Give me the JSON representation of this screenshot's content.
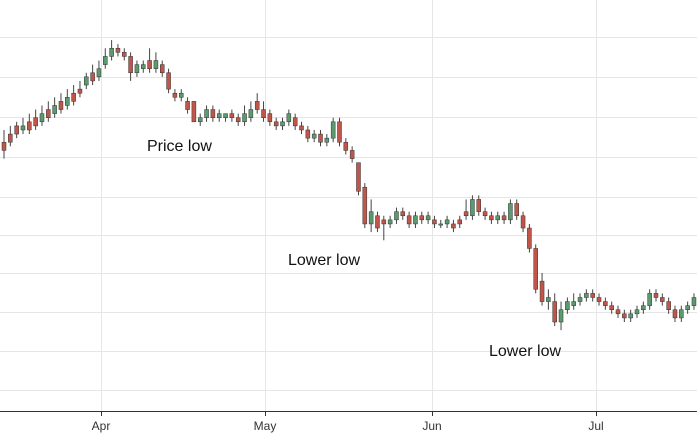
{
  "chart_data": {
    "type": "candlestick",
    "grid": true,
    "x_tick_labels": [
      "Apr",
      "May",
      "Jun",
      "Jul"
    ],
    "ylim": [
      0,
      100
    ],
    "colors": {
      "up": "#5a9a6e",
      "down": "#c0564a",
      "wick": "#444444"
    },
    "annotations": [
      {
        "text": "Price low"
      },
      {
        "text": "Lower low"
      },
      {
        "text": "Lower low"
      }
    ],
    "candles": [
      [
        74,
        72,
        77,
        70
      ],
      [
        76,
        74,
        78,
        73
      ],
      [
        78,
        76,
        79,
        75
      ],
      [
        77,
        78,
        80,
        76
      ],
      [
        79,
        77,
        81,
        76
      ],
      [
        80,
        78,
        82,
        77
      ],
      [
        79,
        81,
        83,
        78
      ],
      [
        82,
        80,
        84,
        79
      ],
      [
        81,
        83,
        85,
        80
      ],
      [
        84,
        82,
        86,
        81
      ],
      [
        83,
        85,
        87,
        82
      ],
      [
        86,
        84,
        88,
        83
      ],
      [
        87,
        86,
        89,
        85
      ],
      [
        88,
        90,
        91,
        87
      ],
      [
        91,
        89,
        93,
        88
      ],
      [
        90,
        92,
        94,
        89
      ],
      [
        93,
        95,
        97,
        92
      ],
      [
        95,
        97,
        99,
        94
      ],
      [
        97,
        96,
        98,
        95
      ],
      [
        96,
        95,
        97,
        94
      ],
      [
        95,
        91,
        96,
        89
      ],
      [
        91,
        93,
        94,
        90
      ],
      [
        92,
        93,
        94,
        91
      ],
      [
        94,
        92,
        97,
        91
      ],
      [
        92,
        94,
        96,
        91
      ],
      [
        93,
        91,
        94,
        90
      ],
      [
        91,
        87,
        92,
        86
      ],
      [
        86,
        85,
        87,
        84
      ],
      [
        85,
        86,
        87,
        84
      ],
      [
        84,
        82,
        85,
        81
      ],
      [
        84,
        79,
        84,
        79
      ],
      [
        79,
        80,
        81,
        78
      ],
      [
        80,
        82,
        83,
        79
      ],
      [
        82,
        80,
        83,
        79
      ],
      [
        80,
        81,
        82,
        79
      ],
      [
        80,
        81,
        81,
        79
      ],
      [
        81,
        80,
        82,
        79
      ],
      [
        80,
        79,
        81,
        78
      ],
      [
        79,
        81,
        83,
        78
      ],
      [
        80,
        82,
        84,
        79
      ],
      [
        84,
        82,
        86,
        81
      ],
      [
        82,
        80,
        84,
        79
      ],
      [
        81,
        79,
        82,
        78
      ],
      [
        79,
        78,
        80,
        77
      ],
      [
        78,
        79,
        80,
        77
      ],
      [
        79,
        81,
        82,
        78
      ],
      [
        80,
        78,
        81,
        77
      ],
      [
        78,
        77,
        79,
        76
      ],
      [
        77,
        75,
        78,
        74
      ],
      [
        75,
        76,
        77,
        74
      ],
      [
        76,
        74,
        77,
        73
      ],
      [
        74,
        75,
        76,
        73
      ],
      [
        75,
        79,
        80,
        74
      ],
      [
        79,
        74,
        80,
        73
      ],
      [
        74,
        72,
        75,
        71
      ],
      [
        72,
        70,
        73,
        69
      ],
      [
        69,
        62,
        69,
        61
      ],
      [
        63,
        54,
        64,
        53
      ],
      [
        54,
        57,
        60,
        52
      ],
      [
        56,
        53,
        57,
        52
      ],
      [
        55,
        54,
        56,
        50
      ],
      [
        54,
        55,
        56,
        53
      ],
      [
        55,
        57,
        58,
        54
      ],
      [
        57,
        56,
        58,
        55
      ],
      [
        56,
        54,
        57,
        53
      ],
      [
        54,
        56,
        57,
        53
      ],
      [
        56,
        55,
        57,
        54
      ],
      [
        55,
        56,
        57,
        54
      ],
      [
        55,
        54,
        56,
        53
      ],
      [
        54,
        54,
        55,
        53
      ],
      [
        54,
        55,
        56,
        53
      ],
      [
        54,
        53,
        55,
        52
      ],
      [
        55,
        54,
        56,
        53
      ],
      [
        57,
        56,
        60,
        55
      ],
      [
        56,
        60,
        61,
        55
      ],
      [
        60,
        57,
        61,
        56
      ],
      [
        57,
        56,
        58,
        55
      ],
      [
        56,
        55,
        57,
        54
      ],
      [
        55,
        56,
        57,
        54
      ],
      [
        56,
        55,
        57,
        54
      ],
      [
        55,
        59,
        60,
        54
      ],
      [
        59,
        56,
        60,
        55
      ],
      [
        56,
        53,
        57,
        52
      ],
      [
        53,
        48,
        54,
        47
      ],
      [
        48,
        38,
        49,
        37
      ],
      [
        40,
        35,
        42,
        34
      ],
      [
        35,
        36,
        38,
        33
      ],
      [
        35,
        30,
        37,
        29
      ],
      [
        30,
        33,
        35,
        28
      ],
      [
        33,
        35,
        36,
        32
      ],
      [
        34,
        35,
        37,
        33
      ],
      [
        35,
        36,
        37,
        34
      ],
      [
        36,
        37,
        38,
        35
      ],
      [
        37,
        36,
        38,
        35
      ],
      [
        36,
        35,
        37,
        34
      ],
      [
        35,
        34,
        36,
        33
      ],
      [
        34,
        33,
        35,
        32
      ],
      [
        33,
        32,
        34,
        31
      ],
      [
        32,
        31,
        33,
        30
      ],
      [
        31,
        32,
        33,
        30
      ],
      [
        32,
        33,
        34,
        31
      ],
      [
        33,
        34,
        35,
        32
      ],
      [
        34,
        37,
        38,
        33
      ],
      [
        37,
        36,
        38,
        35
      ],
      [
        36,
        35,
        37,
        34
      ],
      [
        35,
        33,
        36,
        32
      ],
      [
        33,
        31,
        34,
        30
      ],
      [
        31,
        33,
        34,
        30
      ],
      [
        33,
        34,
        35,
        32
      ],
      [
        34,
        36,
        37,
        33
      ],
      [
        36,
        39,
        41,
        35
      ]
    ]
  }
}
